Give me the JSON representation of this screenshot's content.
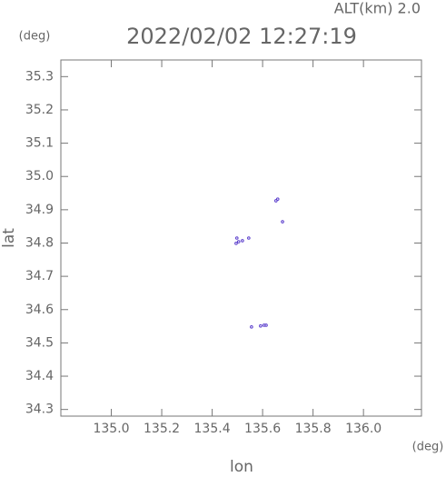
{
  "chart_data": {
    "type": "scatter",
    "title": "2022/02/02 12:27:19",
    "subtitle": "ALT(km)  2.0",
    "x_label": "lon",
    "y_label": "lat",
    "x_unit": "(deg)",
    "y_unit": "(deg)",
    "x": [
      135.653,
      135.66,
      135.679,
      135.498,
      135.505,
      135.495,
      135.52,
      135.545,
      135.556,
      135.592,
      135.606,
      135.614
    ],
    "values": [
      34.927,
      34.932,
      34.864,
      34.815,
      34.804,
      34.799,
      34.807,
      34.815,
      34.548,
      34.551,
      34.553,
      34.553
    ],
    "color": "#5a3dcc",
    "xlim": [
      134.8,
      136.23
    ],
    "ylim": [
      34.28,
      35.35
    ],
    "xticks": [
      {
        "value": 135.0,
        "label": "135.0"
      },
      135.2,
      135.4,
      135.6,
      135.8,
      {
        "value": 136.0,
        "label": "136.0"
      }
    ],
    "yticks": [
      35.3,
      35.2,
      35.1,
      {
        "value": 35.0,
        "label": "35.0"
      },
      34.9,
      34.8,
      34.7,
      34.6,
      34.5,
      34.4,
      34.3
    ]
  }
}
